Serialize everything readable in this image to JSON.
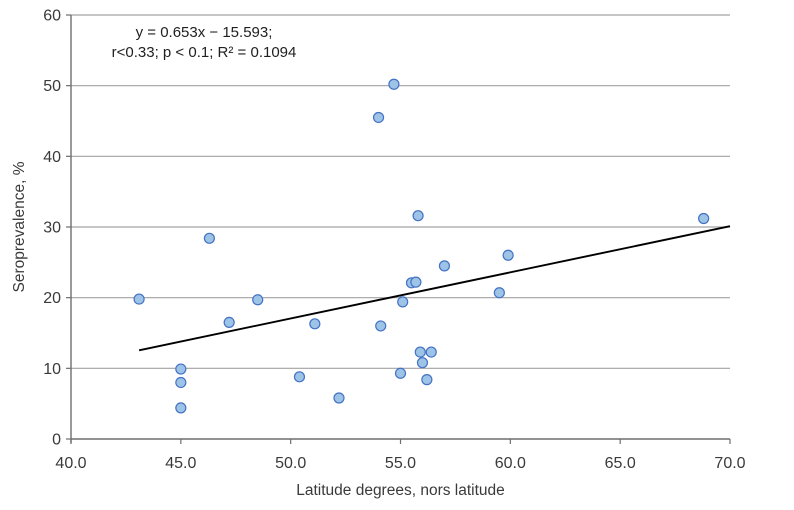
{
  "figure": {
    "background": "#ffffff",
    "annotation": {
      "line1": "y = 0.653x − 15.593;",
      "line2": "r<0.33; p < 0.1; R² = 0.1094"
    }
  },
  "chart_data": {
    "type": "scatter",
    "title": "",
    "xlabel": "Latitude degrees, nors latitude",
    "ylabel": "Seroprevalence, %",
    "xlim": [
      40,
      70
    ],
    "ylim": [
      0,
      60
    ],
    "x_tick_values": [
      40,
      45,
      50,
      55,
      60,
      65,
      70
    ],
    "x_tick_labels": [
      "40.0",
      "45.0",
      "50.0",
      "55.0",
      "60.0",
      "65.0",
      "70.0"
    ],
    "y_tick_values": [
      0,
      10,
      20,
      30,
      40,
      50,
      60
    ],
    "y_tick_labels": [
      "0",
      "10",
      "20",
      "30",
      "40",
      "50",
      "60"
    ],
    "grid": "horizontal",
    "legend": "none",
    "points": [
      [
        43.1,
        19.8
      ],
      [
        45.0,
        9.9
      ],
      [
        45.0,
        8.0
      ],
      [
        45.0,
        4.4
      ],
      [
        46.3,
        28.4
      ],
      [
        47.2,
        16.5
      ],
      [
        48.5,
        19.7
      ],
      [
        50.4,
        8.8
      ],
      [
        51.1,
        16.3
      ],
      [
        52.2,
        5.8
      ],
      [
        54.0,
        45.5
      ],
      [
        54.1,
        16.0
      ],
      [
        54.7,
        50.2
      ],
      [
        55.0,
        9.3
      ],
      [
        55.1,
        19.4
      ],
      [
        55.5,
        22.1
      ],
      [
        55.7,
        22.2
      ],
      [
        55.8,
        31.6
      ],
      [
        55.9,
        12.3
      ],
      [
        56.0,
        10.8
      ],
      [
        56.2,
        8.4
      ],
      [
        56.4,
        12.3
      ],
      [
        57.0,
        24.5
      ],
      [
        59.5,
        20.7
      ],
      [
        59.9,
        26.0
      ],
      [
        68.8,
        31.2
      ]
    ],
    "trendline": {
      "slope": 0.653,
      "intercept": -15.593,
      "x_start": 43.1,
      "x_end": 70.0
    },
    "colors": {
      "marker_fill": "#9DC3E6",
      "marker_stroke": "#4472C4",
      "gridline": "#a3a3a3",
      "axis": "#6e6e6e",
      "tick_text": "#3a3a3a",
      "trend": "#000000"
    }
  }
}
